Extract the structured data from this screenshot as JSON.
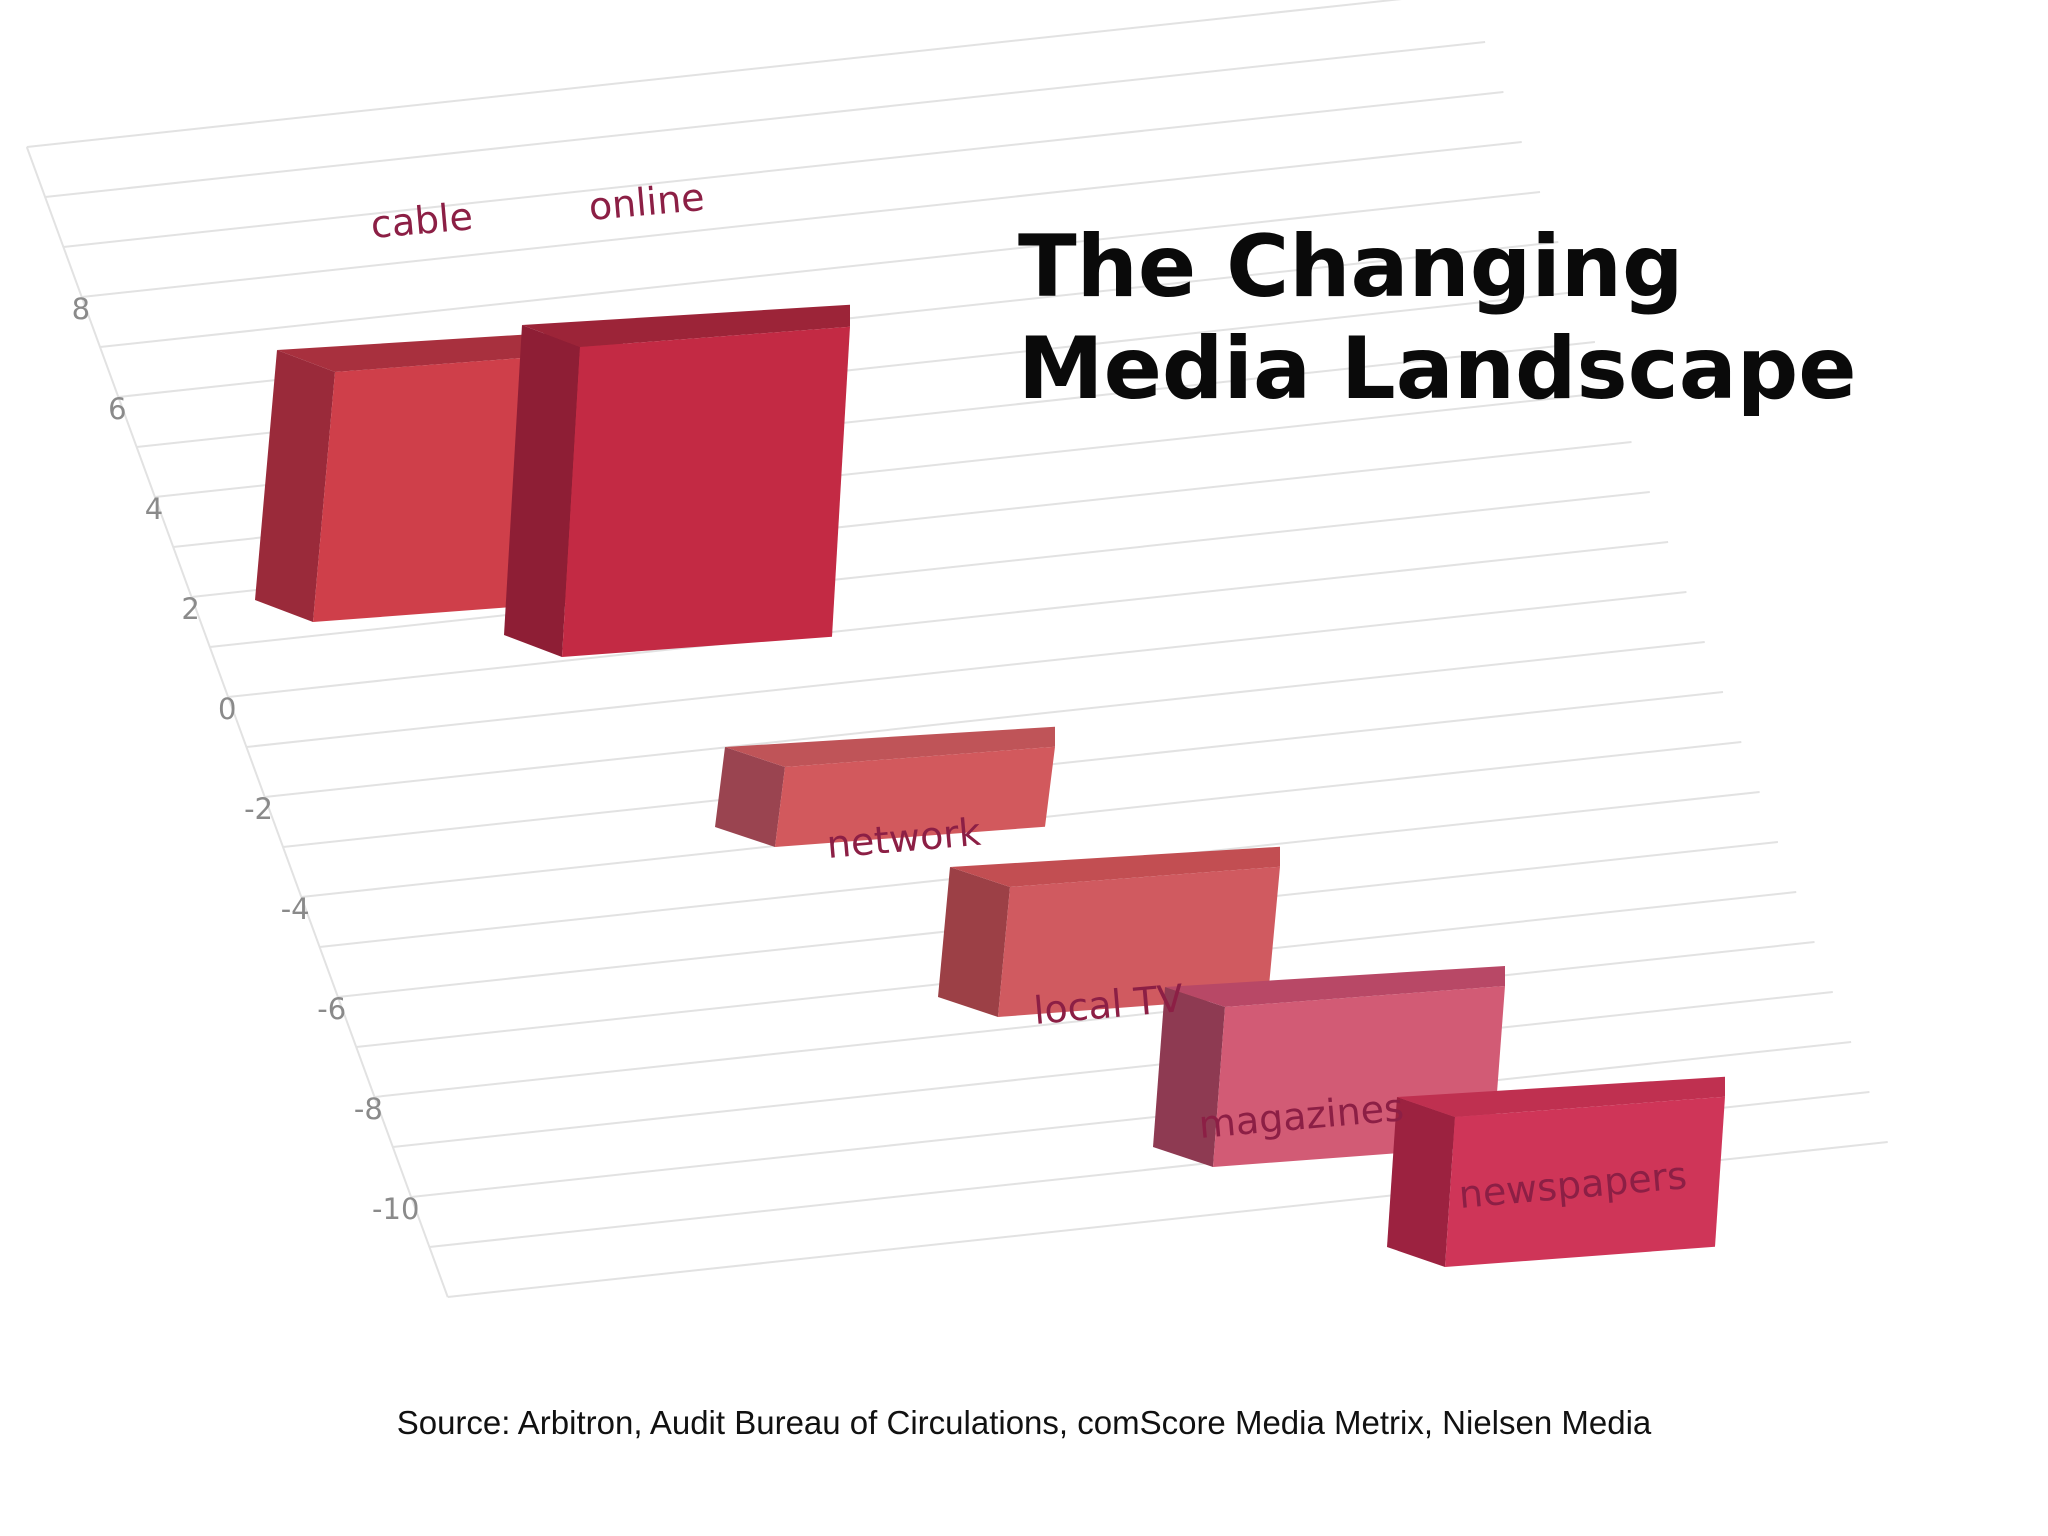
{
  "chart_data": {
    "type": "bar",
    "title_lines": [
      "The Changing",
      "Media Landscape"
    ],
    "categories": [
      "cable",
      "online",
      "network",
      "local TV",
      "magazines",
      "newspapers"
    ],
    "values": [
      7.5,
      8.2,
      -1.6,
      -4.8,
      -7.6,
      -9.4
    ],
    "baselines": [
      2.5,
      2.0,
      0.0,
      -2.2,
      -4.4,
      -6.4
    ],
    "y_ticks": [
      8,
      6,
      4,
      2,
      0,
      -2,
      -4,
      -6,
      -8,
      -10
    ],
    "ylim": [
      -11,
      12
    ],
    "colors": {
      "front": [
        "#cf3f4a",
        "#c32a44",
        "#d2595d",
        "#d05a60",
        "#d25b75",
        "#cf3558"
      ],
      "side": [
        "#9a2a3a",
        "#8e1e35",
        "#9a4450",
        "#9c4046",
        "#8e3a52",
        "#9c2240"
      ],
      "top": [
        "#a8303e",
        "#9c2438",
        "#bf5458",
        "#c24e52",
        "#b84866",
        "#bf3050"
      ]
    },
    "grid": true,
    "source": "Source: Arbitron, Audit Bureau of Circulations, comScore Media Metrix, Nielsen Media"
  }
}
